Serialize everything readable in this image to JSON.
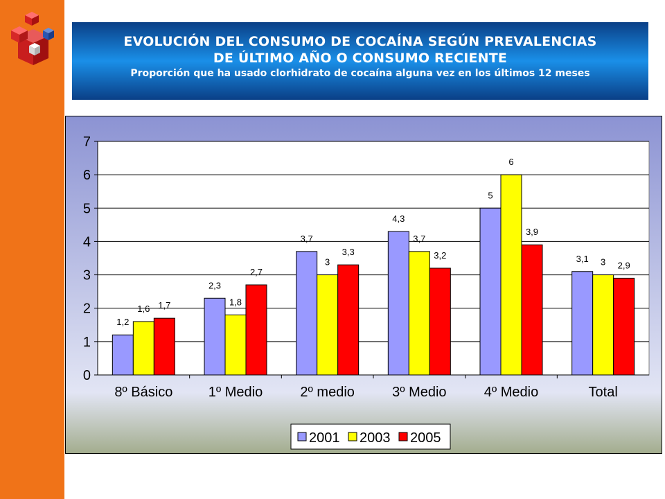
{
  "colors": {
    "side_bar": "#f07318",
    "banner_dark": "#0a3f86",
    "banner_light": "#1a8fe8",
    "chart_bg_top": "#8c93d3",
    "chart_bg_mid": "#e2e5f4",
    "chart_bg_bottom": "#a3ad8e",
    "plot_bg": "#ffffff",
    "series_2001": "#9999ff",
    "series_2003": "#ffff00",
    "series_2005": "#ff0000"
  },
  "header": {
    "title_line1": "EVOLUCIÓN DEL CONSUMO DE COCAÍNA SEGÚN PREVALENCIAS",
    "title_line2": "DE ÚLTIMO AÑO O CONSUMO RECIENTE",
    "subtitle": "Proporción que ha usado clorhidrato de cocaína alguna vez en los últimos 12 meses"
  },
  "chart_data": {
    "type": "bar",
    "categories": [
      "8º Básico",
      "1º Medio",
      "2º medio",
      "3º Medio",
      "4º Medio",
      "Total"
    ],
    "series": [
      {
        "name": "2001",
        "color": "#9999ff",
        "values": [
          1.2,
          2.3,
          3.7,
          4.3,
          5,
          3.1
        ],
        "labels": [
          "1,2",
          "2,3",
          "3,7",
          "4,3",
          "5",
          "3,1"
        ]
      },
      {
        "name": "2003",
        "color": "#ffff00",
        "values": [
          1.6,
          1.8,
          3,
          3.7,
          6,
          3
        ],
        "labels": [
          "1,6",
          "1,8",
          "3",
          "3,7",
          "6",
          "3"
        ]
      },
      {
        "name": "2005",
        "color": "#ff0000",
        "values": [
          1.7,
          2.7,
          3.3,
          3.2,
          3.9,
          2.9
        ],
        "labels": [
          "1,7",
          "2,7",
          "3,3",
          "3,2",
          "3,9",
          "2,9"
        ]
      }
    ],
    "yticks": [
      "0",
      "1",
      "2",
      "3",
      "4",
      "5",
      "6",
      "7"
    ],
    "ylim": [
      0,
      7
    ],
    "grid": true,
    "legend": "bottom"
  }
}
